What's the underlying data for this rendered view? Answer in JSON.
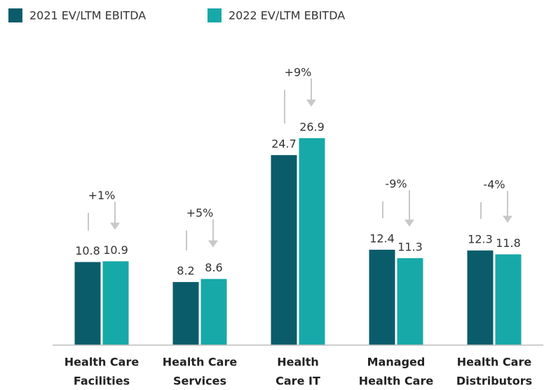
{
  "chart_data": {
    "type": "bar",
    "categories": [
      [
        "Health Care",
        "Facilities"
      ],
      [
        "Health Care",
        "Services"
      ],
      [
        "Health",
        "Care IT"
      ],
      [
        "Managed",
        "Health Care"
      ],
      [
        "Health Care",
        "Distributors"
      ]
    ],
    "series": [
      {
        "name": "2021 EV/LTM EBITDA",
        "color": "#0b5c6b",
        "values": [
          10.8,
          8.2,
          24.7,
          12.4,
          12.3
        ]
      },
      {
        "name": "2022 EV/LTM EBITDA",
        "color": "#17a9a8",
        "values": [
          10.9,
          8.6,
          26.9,
          11.3,
          11.8
        ]
      }
    ],
    "annotations": [
      "+1%",
      "+5%",
      "+9%",
      "-9%",
      "-4%"
    ],
    "ylim": [
      0,
      30
    ],
    "legend": "top-left"
  }
}
